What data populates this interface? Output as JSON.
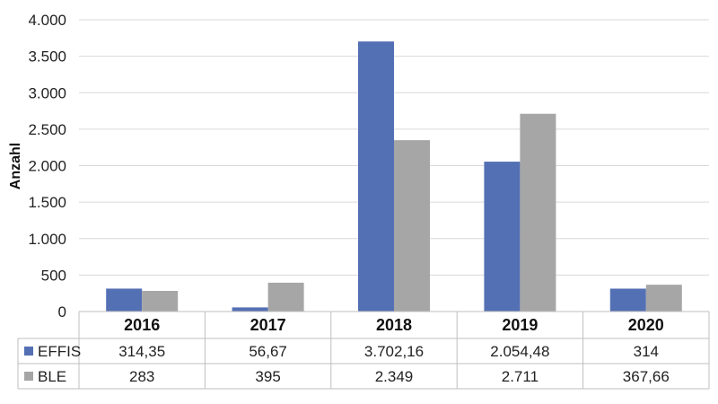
{
  "chart_data": {
    "type": "bar",
    "categories": [
      "2016",
      "2017",
      "2018",
      "2019",
      "2020"
    ],
    "series": [
      {
        "name": "EFFIS",
        "values": [
          314.35,
          56.67,
          3702.16,
          2054.48,
          314
        ],
        "labels": [
          "314,35",
          "56,67",
          "3.702,16",
          "2.054,48",
          "314"
        ],
        "color": "#5470b4"
      },
      {
        "name": "BLE",
        "values": [
          283,
          395,
          2349,
          2711,
          367.66
        ],
        "labels": [
          "283",
          "395",
          "2.349",
          "2.711",
          "367,66"
        ],
        "color": "#a6a6a6"
      }
    ],
    "ylabel": "Anzahl",
    "ylim": [
      0,
      4000
    ],
    "yticks": [
      0,
      500,
      1000,
      1500,
      2000,
      2500,
      3000,
      3500,
      4000
    ],
    "ytick_labels": [
      "0",
      "500",
      "1.000",
      "1.500",
      "2.000",
      "2.500",
      "3.000",
      "3.500",
      "4.000"
    ],
    "grid": true,
    "legend": "data-table",
    "gridline_color": "#d9d9d9",
    "table_line_color": "#bfbfbf"
  }
}
